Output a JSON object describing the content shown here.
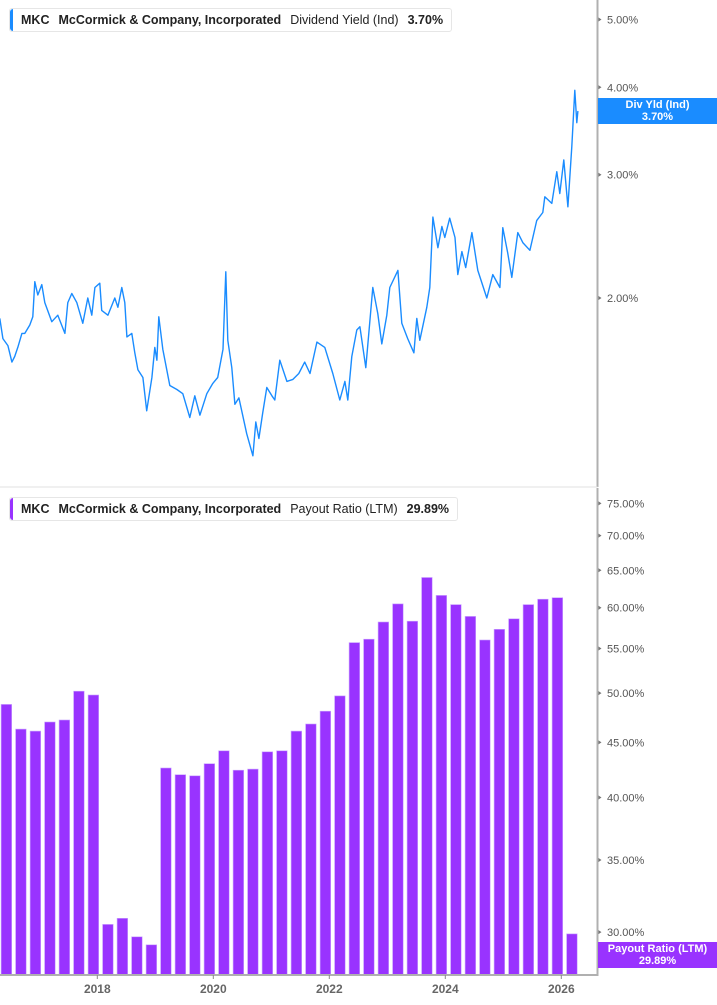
{
  "colors": {
    "yield_line": "#1a8cff",
    "payout_bar": "#9933ff",
    "axis": "#b0b0b0"
  },
  "legend_top": {
    "ticker": "MKC",
    "company": "McCormick & Company, Incorporated",
    "metric": "Dividend Yield (Ind)",
    "value": "3.70%"
  },
  "legend_bottom": {
    "ticker": "MKC",
    "company": "McCormick & Company, Incorporated",
    "metric": "Payout Ratio (LTM)",
    "value": "29.89%"
  },
  "badge_top": {
    "label": "Div Yld (Ind)",
    "value": "3.70%"
  },
  "badge_bottom": {
    "label": "Payout Ratio (LTM)",
    "value": "29.89%"
  },
  "chart_data": [
    {
      "type": "line",
      "name": "Dividend Yield (Ind)",
      "scale": "log",
      "ylim": [
        1.1,
        5.3
      ],
      "yticks": [
        "5.00%",
        "4.00%",
        "3.00%",
        "2.00%"
      ],
      "ytick_values": [
        5,
        4,
        3,
        2
      ],
      "grid": false,
      "points": [
        [
          "2016-04-26",
          1.87
        ],
        [
          "2016-05-15",
          1.75
        ],
        [
          "2016-06-16",
          1.71
        ],
        [
          "2016-07-11",
          1.62
        ],
        [
          "2016-07-29",
          1.65
        ],
        [
          "2016-08-18",
          1.7
        ],
        [
          "2016-09-13",
          1.78
        ],
        [
          "2016-10-01",
          1.78
        ],
        [
          "2016-11-02",
          1.83
        ],
        [
          "2016-11-21",
          1.88
        ],
        [
          "2016-12-03",
          2.11
        ],
        [
          "2016-12-22",
          2.02
        ],
        [
          "2017-01-17",
          2.09
        ],
        [
          "2017-02-05",
          1.97
        ],
        [
          "2017-03-19",
          1.85
        ],
        [
          "2017-04-26",
          1.89
        ],
        [
          "2017-06-10",
          1.78
        ],
        [
          "2017-06-28",
          1.97
        ],
        [
          "2017-07-23",
          2.03
        ],
        [
          "2017-08-24",
          1.97
        ],
        [
          "2017-10-01",
          1.84
        ],
        [
          "2017-11-02",
          2.0
        ],
        [
          "2017-11-27",
          1.89
        ],
        [
          "2017-12-16",
          2.07
        ],
        [
          "2018-01-17",
          2.1
        ],
        [
          "2018-01-29",
          1.92
        ],
        [
          "2018-03-07",
          1.89
        ],
        [
          "2018-04-20",
          2.0
        ],
        [
          "2018-05-09",
          1.94
        ],
        [
          "2018-06-03",
          2.07
        ],
        [
          "2018-06-22",
          1.97
        ],
        [
          "2018-07-05",
          1.76
        ],
        [
          "2018-08-05",
          1.78
        ],
        [
          "2018-08-24",
          1.67
        ],
        [
          "2018-09-13",
          1.58
        ],
        [
          "2018-10-14",
          1.54
        ],
        [
          "2018-11-08",
          1.38
        ],
        [
          "2018-12-10",
          1.54
        ],
        [
          "2018-12-28",
          1.7
        ],
        [
          "2019-01-11",
          1.63
        ],
        [
          "2019-01-23",
          1.88
        ],
        [
          "2019-02-18",
          1.69
        ],
        [
          "2019-04-01",
          1.5
        ],
        [
          "2019-05-15",
          1.48
        ],
        [
          "2019-06-22",
          1.46
        ],
        [
          "2019-08-05",
          1.35
        ],
        [
          "2019-09-06",
          1.45
        ],
        [
          "2019-10-08",
          1.36
        ],
        [
          "2019-11-21",
          1.46
        ],
        [
          "2019-12-28",
          1.51
        ],
        [
          "2020-01-29",
          1.54
        ],
        [
          "2020-03-01",
          1.69
        ],
        [
          "2020-03-19",
          2.18
        ],
        [
          "2020-04-01",
          1.74
        ],
        [
          "2020-04-26",
          1.59
        ],
        [
          "2020-05-15",
          1.41
        ],
        [
          "2020-06-10",
          1.44
        ],
        [
          "2020-07-29",
          1.28
        ],
        [
          "2020-09-07",
          1.19
        ],
        [
          "2020-09-25",
          1.33
        ],
        [
          "2020-10-14",
          1.26
        ],
        [
          "2020-11-08",
          1.37
        ],
        [
          "2020-12-03",
          1.49
        ],
        [
          "2021-01-05",
          1.45
        ],
        [
          "2021-01-23",
          1.43
        ],
        [
          "2021-02-24",
          1.63
        ],
        [
          "2021-04-08",
          1.52
        ],
        [
          "2021-05-15",
          1.53
        ],
        [
          "2021-06-22",
          1.56
        ],
        [
          "2021-07-29",
          1.62
        ],
        [
          "2021-09-01",
          1.56
        ],
        [
          "2021-10-14",
          1.73
        ],
        [
          "2021-12-03",
          1.7
        ],
        [
          "2022-01-23",
          1.56
        ],
        [
          "2022-03-06",
          1.43
        ],
        [
          "2022-04-08",
          1.52
        ],
        [
          "2022-04-26",
          1.43
        ],
        [
          "2022-05-21",
          1.65
        ],
        [
          "2022-06-22",
          1.8
        ],
        [
          "2022-07-11",
          1.82
        ],
        [
          "2022-08-18",
          1.59
        ],
        [
          "2022-10-01",
          2.07
        ],
        [
          "2022-11-02",
          1.9
        ],
        [
          "2022-11-27",
          1.72
        ],
        [
          "2022-12-28",
          1.89
        ],
        [
          "2023-01-17",
          2.07
        ],
        [
          "2023-03-07",
          2.19
        ],
        [
          "2023-04-01",
          1.84
        ],
        [
          "2023-05-08",
          1.75
        ],
        [
          "2023-06-16",
          1.67
        ],
        [
          "2023-07-04",
          1.87
        ],
        [
          "2023-07-23",
          1.74
        ],
        [
          "2023-09-06",
          1.94
        ],
        [
          "2023-09-25",
          2.07
        ],
        [
          "2023-10-14",
          2.61
        ],
        [
          "2023-11-15",
          2.36
        ],
        [
          "2023-12-10",
          2.53
        ],
        [
          "2023-12-28",
          2.44
        ],
        [
          "2024-01-29",
          2.6
        ],
        [
          "2024-03-01",
          2.44
        ],
        [
          "2024-03-19",
          2.16
        ],
        [
          "2024-04-14",
          2.33
        ],
        [
          "2024-05-08",
          2.21
        ],
        [
          "2024-06-16",
          2.48
        ],
        [
          "2024-07-23",
          2.19
        ],
        [
          "2024-09-19",
          2.0
        ],
        [
          "2024-10-26",
          2.16
        ],
        [
          "2024-12-10",
          2.07
        ],
        [
          "2024-12-28",
          2.52
        ],
        [
          "2025-01-29",
          2.32
        ],
        [
          "2025-02-24",
          2.14
        ],
        [
          "2025-04-01",
          2.48
        ],
        [
          "2025-05-02",
          2.4
        ],
        [
          "2025-06-16",
          2.34
        ],
        [
          "2025-07-29",
          2.58
        ],
        [
          "2025-09-06",
          2.65
        ],
        [
          "2025-09-19",
          2.79
        ],
        [
          "2025-11-02",
          2.73
        ],
        [
          "2025-12-03",
          3.03
        ],
        [
          "2025-12-22",
          2.82
        ],
        [
          "2026-01-17",
          3.15
        ],
        [
          "2026-02-12",
          2.7
        ],
        [
          "2026-03-06",
          3.29
        ],
        [
          "2026-03-25",
          3.96
        ],
        [
          "2026-04-07",
          3.56
        ],
        [
          "2026-04-14",
          3.7
        ]
      ]
    },
    {
      "type": "bar",
      "name": "Payout Ratio (LTM)",
      "scale": "log",
      "ylim": [
        27.4,
        76
      ],
      "yticks": [
        "75.00%",
        "70.00%",
        "65.00%",
        "60.00%",
        "55.00%",
        "50.00%",
        "45.00%",
        "40.00%",
        "35.00%",
        "30.00%"
      ],
      "ytick_values": [
        75,
        70,
        65,
        60,
        55,
        50,
        45,
        40,
        35,
        30
      ],
      "xticks": [
        "2018",
        "2020",
        "2022",
        "2024",
        "2026"
      ],
      "grid": false,
      "categories": [
        "2016-05",
        "2016-08",
        "2016-11",
        "2017-02",
        "2017-05",
        "2017-08",
        "2017-11",
        "2018-02",
        "2018-05",
        "2018-08",
        "2018-11",
        "2019-02",
        "2019-05",
        "2019-08",
        "2019-11",
        "2020-02",
        "2020-05",
        "2020-08",
        "2020-11",
        "2021-02",
        "2021-05",
        "2021-08",
        "2021-11",
        "2022-02",
        "2022-05",
        "2022-08",
        "2022-11",
        "2023-02",
        "2023-05",
        "2023-08",
        "2023-11",
        "2024-02",
        "2024-05",
        "2024-08",
        "2024-11",
        "2025-02",
        "2025-05",
        "2025-08",
        "2025-11",
        "2026-02"
      ],
      "values": [
        48.8,
        46.3,
        46.1,
        47.0,
        47.2,
        50.2,
        49.8,
        30.5,
        30.9,
        29.7,
        29.2,
        42.6,
        42.0,
        41.9,
        43.0,
        44.2,
        42.4,
        42.5,
        44.1,
        44.2,
        46.1,
        46.8,
        48.1,
        49.7,
        55.7,
        56.1,
        58.2,
        60.5,
        58.3,
        64.0,
        61.6,
        60.4,
        58.9,
        56.0,
        57.3,
        58.6,
        60.4,
        61.1,
        61.3,
        29.89
      ]
    }
  ]
}
